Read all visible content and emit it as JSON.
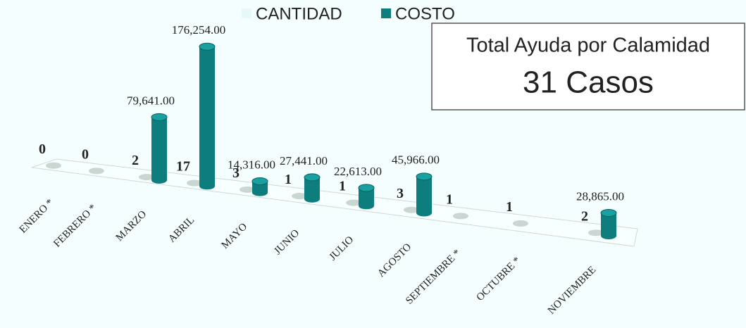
{
  "chart_data": {
    "type": "bar3d",
    "categories": [
      "ENERO *",
      "FEBRERO *",
      "MARZO",
      "ABRIL",
      "MAYO",
      "JUNIO",
      "JULIO",
      "AGOSTO",
      "SEPTIEMBRE *",
      "OCTUBRE *",
      "NOVIEMBRE"
    ],
    "series": [
      {
        "name": "CANTIDAD",
        "color": "#c9d6d2",
        "swatch": "#e6f8f8",
        "values": [
          0,
          0,
          2,
          17,
          3,
          1,
          1,
          3,
          1,
          1,
          2
        ]
      },
      {
        "name": "COSTO",
        "color": "#0e7d7d",
        "values": [
          null,
          null,
          79641,
          176254,
          14316,
          27441,
          22613,
          45966,
          null,
          null,
          28865
        ],
        "value_labels": [
          null,
          null,
          "79,641.00",
          "176,254.00",
          "14,316.00",
          "27,441.00",
          "22,613.00",
          "45,966.00",
          null,
          null,
          "28,865.00"
        ]
      }
    ],
    "annotation": {
      "title": "Total Ayuda por Calamidad",
      "text": "31 Casos"
    }
  }
}
